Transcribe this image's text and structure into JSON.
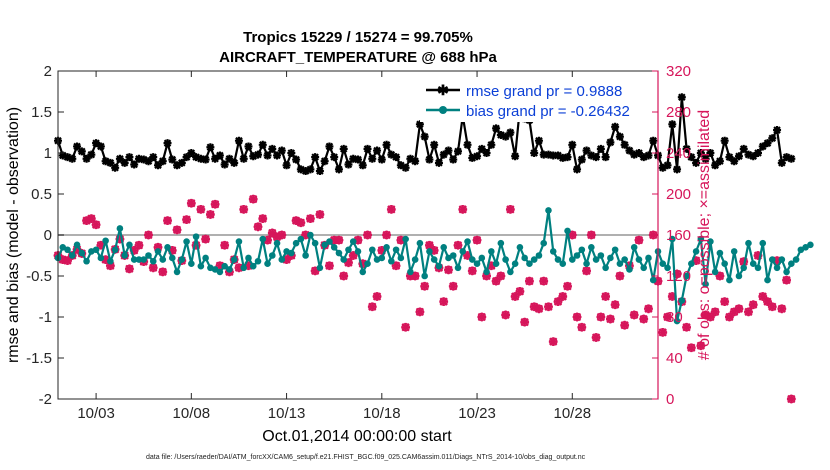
{
  "chart_data": {
    "type": "line",
    "title": "Tropics 15229 / 15274 = 99.705%",
    "subtitle": "AIRCRAFT_TEMPERATURE @ 688 hPa",
    "xlabel": "Oct.01,2014 00:00:00 start",
    "ylabel_left": "rmse and bias (model - observation)",
    "ylabel_right": "# of obs: o=possible; ×=assimilated",
    "footnote": "data file: /Users/raeder/DAI/ATM_forcXX/CAM6_setup/f.e21.FHIST_BGC.f09_025.CAM6assim.011/Diags_NTrS_2014-10/obs_diag_output.nc",
    "xlim": [
      1.0,
      32.5
    ],
    "ylim_left": [
      -2,
      2
    ],
    "ylim_right": [
      0,
      320
    ],
    "x_tick_positions": [
      3,
      8,
      13,
      18,
      23,
      28
    ],
    "x_tick_labels": [
      "10/03",
      "10/08",
      "10/13",
      "10/18",
      "10/23",
      "10/28"
    ],
    "y_ticks_left": [
      "2",
      "1.5",
      "1",
      "0.5",
      "0",
      "-0.5",
      "-1",
      "-1.5",
      "-2"
    ],
    "y_ticks_right": [
      "320",
      "280",
      "240",
      "200",
      "160",
      "120",
      "80",
      "40",
      "0"
    ],
    "zero_line": 0,
    "legend": [
      {
        "name": "rmse grand pr = 0.9888",
        "color": "#000000"
      },
      {
        "name": "bias grand pr = -0.26432",
        "color": "#008080"
      }
    ],
    "series": [
      {
        "name": "rmse",
        "color": "#000000",
        "x_start": 1.0,
        "x_step": 0.25,
        "values": [
          1.15,
          0.97,
          0.95,
          0.93,
          1.08,
          1.02,
          0.93,
          0.98,
          1.12,
          1.08,
          0.9,
          0.88,
          0.82,
          0.93,
          0.88,
          0.95,
          0.86,
          0.93,
          0.92,
          0.9,
          0.95,
          0.85,
          0.9,
          1.12,
          0.92,
          0.85,
          0.88,
          0.95,
          1.0,
          0.95,
          0.93,
          0.92,
          1.07,
          0.93,
          0.97,
          0.86,
          0.93,
          0.88,
          1.15,
          0.93,
          1.08,
          0.96,
          0.98,
          1.1,
          0.97,
          1.05,
          0.97,
          1.03,
          0.85,
          1.0,
          0.92,
          0.8,
          0.78,
          0.8,
          0.95,
          0.78,
          0.9,
          1.08,
          0.95,
          0.8,
          1.05,
          0.86,
          0.93,
          0.92,
          0.85,
          1.05,
          0.93,
          1.03,
          0.92,
          1.1,
          0.98,
          0.95,
          0.85,
          0.82,
          0.93,
          0.9,
          1.35,
          1.2,
          0.92,
          1.1,
          0.88,
          0.98,
          1.03,
          0.92,
          1.02,
          1.45,
          1.1,
          0.94,
          0.96,
          1.05,
          1.0,
          1.1,
          1.3,
          1.22,
          1.2,
          1.25,
          0.96,
          1.55,
          1.42,
          1.4,
          1.0,
          1.15,
          0.98,
          0.98,
          0.97,
          0.97,
          0.94,
          0.95,
          1.1,
          0.8,
          0.92,
          1.03,
          0.97,
          0.95,
          1.05,
          0.95,
          1.13,
          1.32,
          1.2,
          1.1,
          1.03,
          0.98,
          1.0,
          0.95,
          0.97,
          1.15,
          0.97,
          0.82,
          0.85,
          1.35,
          0.8,
          1.68,
          1.05,
          0.95,
          0.88,
          1.0,
          0.93,
          1.0,
          0.85,
          0.9,
          1.15,
          0.95,
          0.9,
          0.96,
          1.05,
          0.98,
          0.96,
          1.0,
          1.08,
          1.12,
          1.18,
          1.28,
          0.88,
          0.95,
          0.93
        ]
      },
      {
        "name": "bias",
        "color": "#008080",
        "x_start": 1.0,
        "x_step": 0.25,
        "values": [
          -0.28,
          -0.15,
          -0.18,
          -0.25,
          -0.12,
          -0.22,
          -0.32,
          -0.2,
          -0.18,
          -0.28,
          -0.07,
          -0.32,
          -0.18,
          0.08,
          -0.25,
          -0.12,
          -0.3,
          -0.3,
          -0.3,
          -0.25,
          -0.32,
          -0.2,
          -0.3,
          -0.15,
          -0.28,
          -0.45,
          -0.3,
          -0.08,
          -0.35,
          -0.02,
          -0.38,
          -0.28,
          -0.4,
          -0.42,
          -0.45,
          -0.38,
          -0.42,
          -0.3,
          -0.08,
          -0.4,
          -0.28,
          -0.38,
          -0.32,
          -0.05,
          -0.35,
          -0.25,
          -0.1,
          -0.3,
          -0.2,
          -0.22,
          -0.1,
          -0.05,
          -0.25,
          0.0,
          -0.1,
          -0.4,
          -0.12,
          -0.08,
          -0.15,
          -0.22,
          -0.3,
          -0.18,
          -0.08,
          -0.2,
          -0.45,
          -0.35,
          -0.18,
          -0.3,
          -0.28,
          -0.15,
          -0.32,
          -0.18,
          -0.28,
          -0.05,
          -0.45,
          -0.3,
          -0.1,
          -0.5,
          -0.2,
          -0.3,
          -0.38,
          -0.15,
          -0.28,
          -0.25,
          -0.4,
          -0.2,
          -0.08,
          -0.3,
          -0.35,
          -0.28,
          -0.45,
          -0.2,
          -0.35,
          -0.1,
          -0.3,
          -0.45,
          -0.35,
          -0.15,
          -0.28,
          -0.35,
          -0.3,
          -0.25,
          -0.1,
          0.3,
          -0.2,
          -0.3,
          -0.35,
          0.05,
          -0.3,
          -0.25,
          -0.18,
          -0.35,
          -0.15,
          -0.3,
          -0.25,
          -0.4,
          -0.28,
          -0.18,
          -0.35,
          -0.3,
          -0.42,
          -0.15,
          -0.3,
          -0.4,
          -0.28,
          -0.55,
          -0.2,
          -0.35,
          -0.4,
          -0.05,
          -1.05,
          -0.8,
          -0.5,
          -0.35,
          -0.2,
          -0.05,
          -0.6,
          -0.08,
          -0.45,
          -0.22,
          -0.35,
          -0.55,
          -0.2,
          -0.5,
          -0.4,
          -0.1,
          -0.35,
          -0.4,
          -0.1,
          -0.55,
          -0.3,
          -0.4,
          -0.3,
          -0.45,
          -0.35,
          -0.3,
          -0.18,
          -0.15,
          -0.12
        ]
      },
      {
        "name": "obs_possible",
        "color": "#d6155a",
        "axis": "right",
        "marker": "o",
        "x_start": 1.0,
        "x_step": 0.25,
        "values": [
          140,
          136,
          135,
          140,
          146,
          142,
          174,
          176,
          170,
          150,
          136,
          130,
          146,
          156,
          140,
          127,
          145,
          150,
          134,
          160,
          128,
          148,
          124,
          174,
          145,
          165,
          135,
          175,
          191,
          150,
          185,
          156,
          180,
          190,
          130,
          150,
          124,
          136,
          128,
          185,
          130,
          195,
          168,
          176,
          155,
          162,
          158,
          160,
          136,
          140,
          174,
          172,
          160,
          176,
          125,
          180,
          150,
          130,
          155,
          155,
          120,
          133,
          140,
          155,
          132,
          160,
          90,
          100,
          145,
          160,
          185,
          130,
          155,
          70,
          120,
          120,
          85,
          110,
          150,
          145,
          128,
          95,
          126,
          110,
          150,
          185,
          140,
          125,
          155,
          80,
          120,
          130,
          115,
          120,
          82,
          185,
          100,
          105,
          75,
          115,
          90,
          88,
          115,
          90,
          56,
          95,
          100,
          110,
          160,
          80,
          70,
          125,
          160,
          60,
          80,
          100,
          78,
          92,
          120,
          72,
          130,
          82,
          155,
          78,
          88,
          160,
          115,
          65,
          80,
          100,
          122,
          95,
          70,
          50,
          135,
          52,
          82,
          80,
          85,
          120,
          95,
          80,
          85,
          88,
          134,
          85,
          92,
          140,
          100,
          95,
          90,
          135,
          88,
          116,
          0
        ]
      },
      {
        "name": "obs_assimilated",
        "color": "#d6155a",
        "axis": "right",
        "marker": "x",
        "x_start": 1.0,
        "x_step": 0.25,
        "values": [
          140,
          136,
          135,
          140,
          146,
          142,
          174,
          176,
          170,
          150,
          136,
          130,
          146,
          156,
          140,
          127,
          145,
          150,
          134,
          160,
          128,
          148,
          124,
          174,
          145,
          165,
          135,
          175,
          191,
          150,
          185,
          156,
          180,
          190,
          130,
          150,
          124,
          136,
          128,
          185,
          130,
          195,
          168,
          176,
          155,
          162,
          158,
          160,
          136,
          140,
          174,
          172,
          160,
          176,
          125,
          180,
          150,
          130,
          155,
          155,
          120,
          133,
          140,
          155,
          132,
          160,
          90,
          100,
          145,
          160,
          185,
          130,
          155,
          70,
          120,
          120,
          85,
          110,
          150,
          145,
          128,
          95,
          126,
          110,
          150,
          185,
          140,
          125,
          155,
          80,
          120,
          130,
          115,
          120,
          82,
          185,
          100,
          105,
          75,
          115,
          90,
          88,
          115,
          90,
          56,
          95,
          100,
          110,
          160,
          80,
          70,
          125,
          160,
          60,
          80,
          100,
          78,
          92,
          120,
          72,
          130,
          82,
          155,
          78,
          88,
          160,
          115,
          65,
          80,
          100,
          122,
          95,
          70,
          50,
          135,
          52,
          82,
          80,
          85,
          120,
          95,
          80,
          85,
          88,
          134,
          85,
          92,
          140,
          100,
          95,
          90,
          135,
          88,
          116,
          0
        ]
      }
    ]
  }
}
